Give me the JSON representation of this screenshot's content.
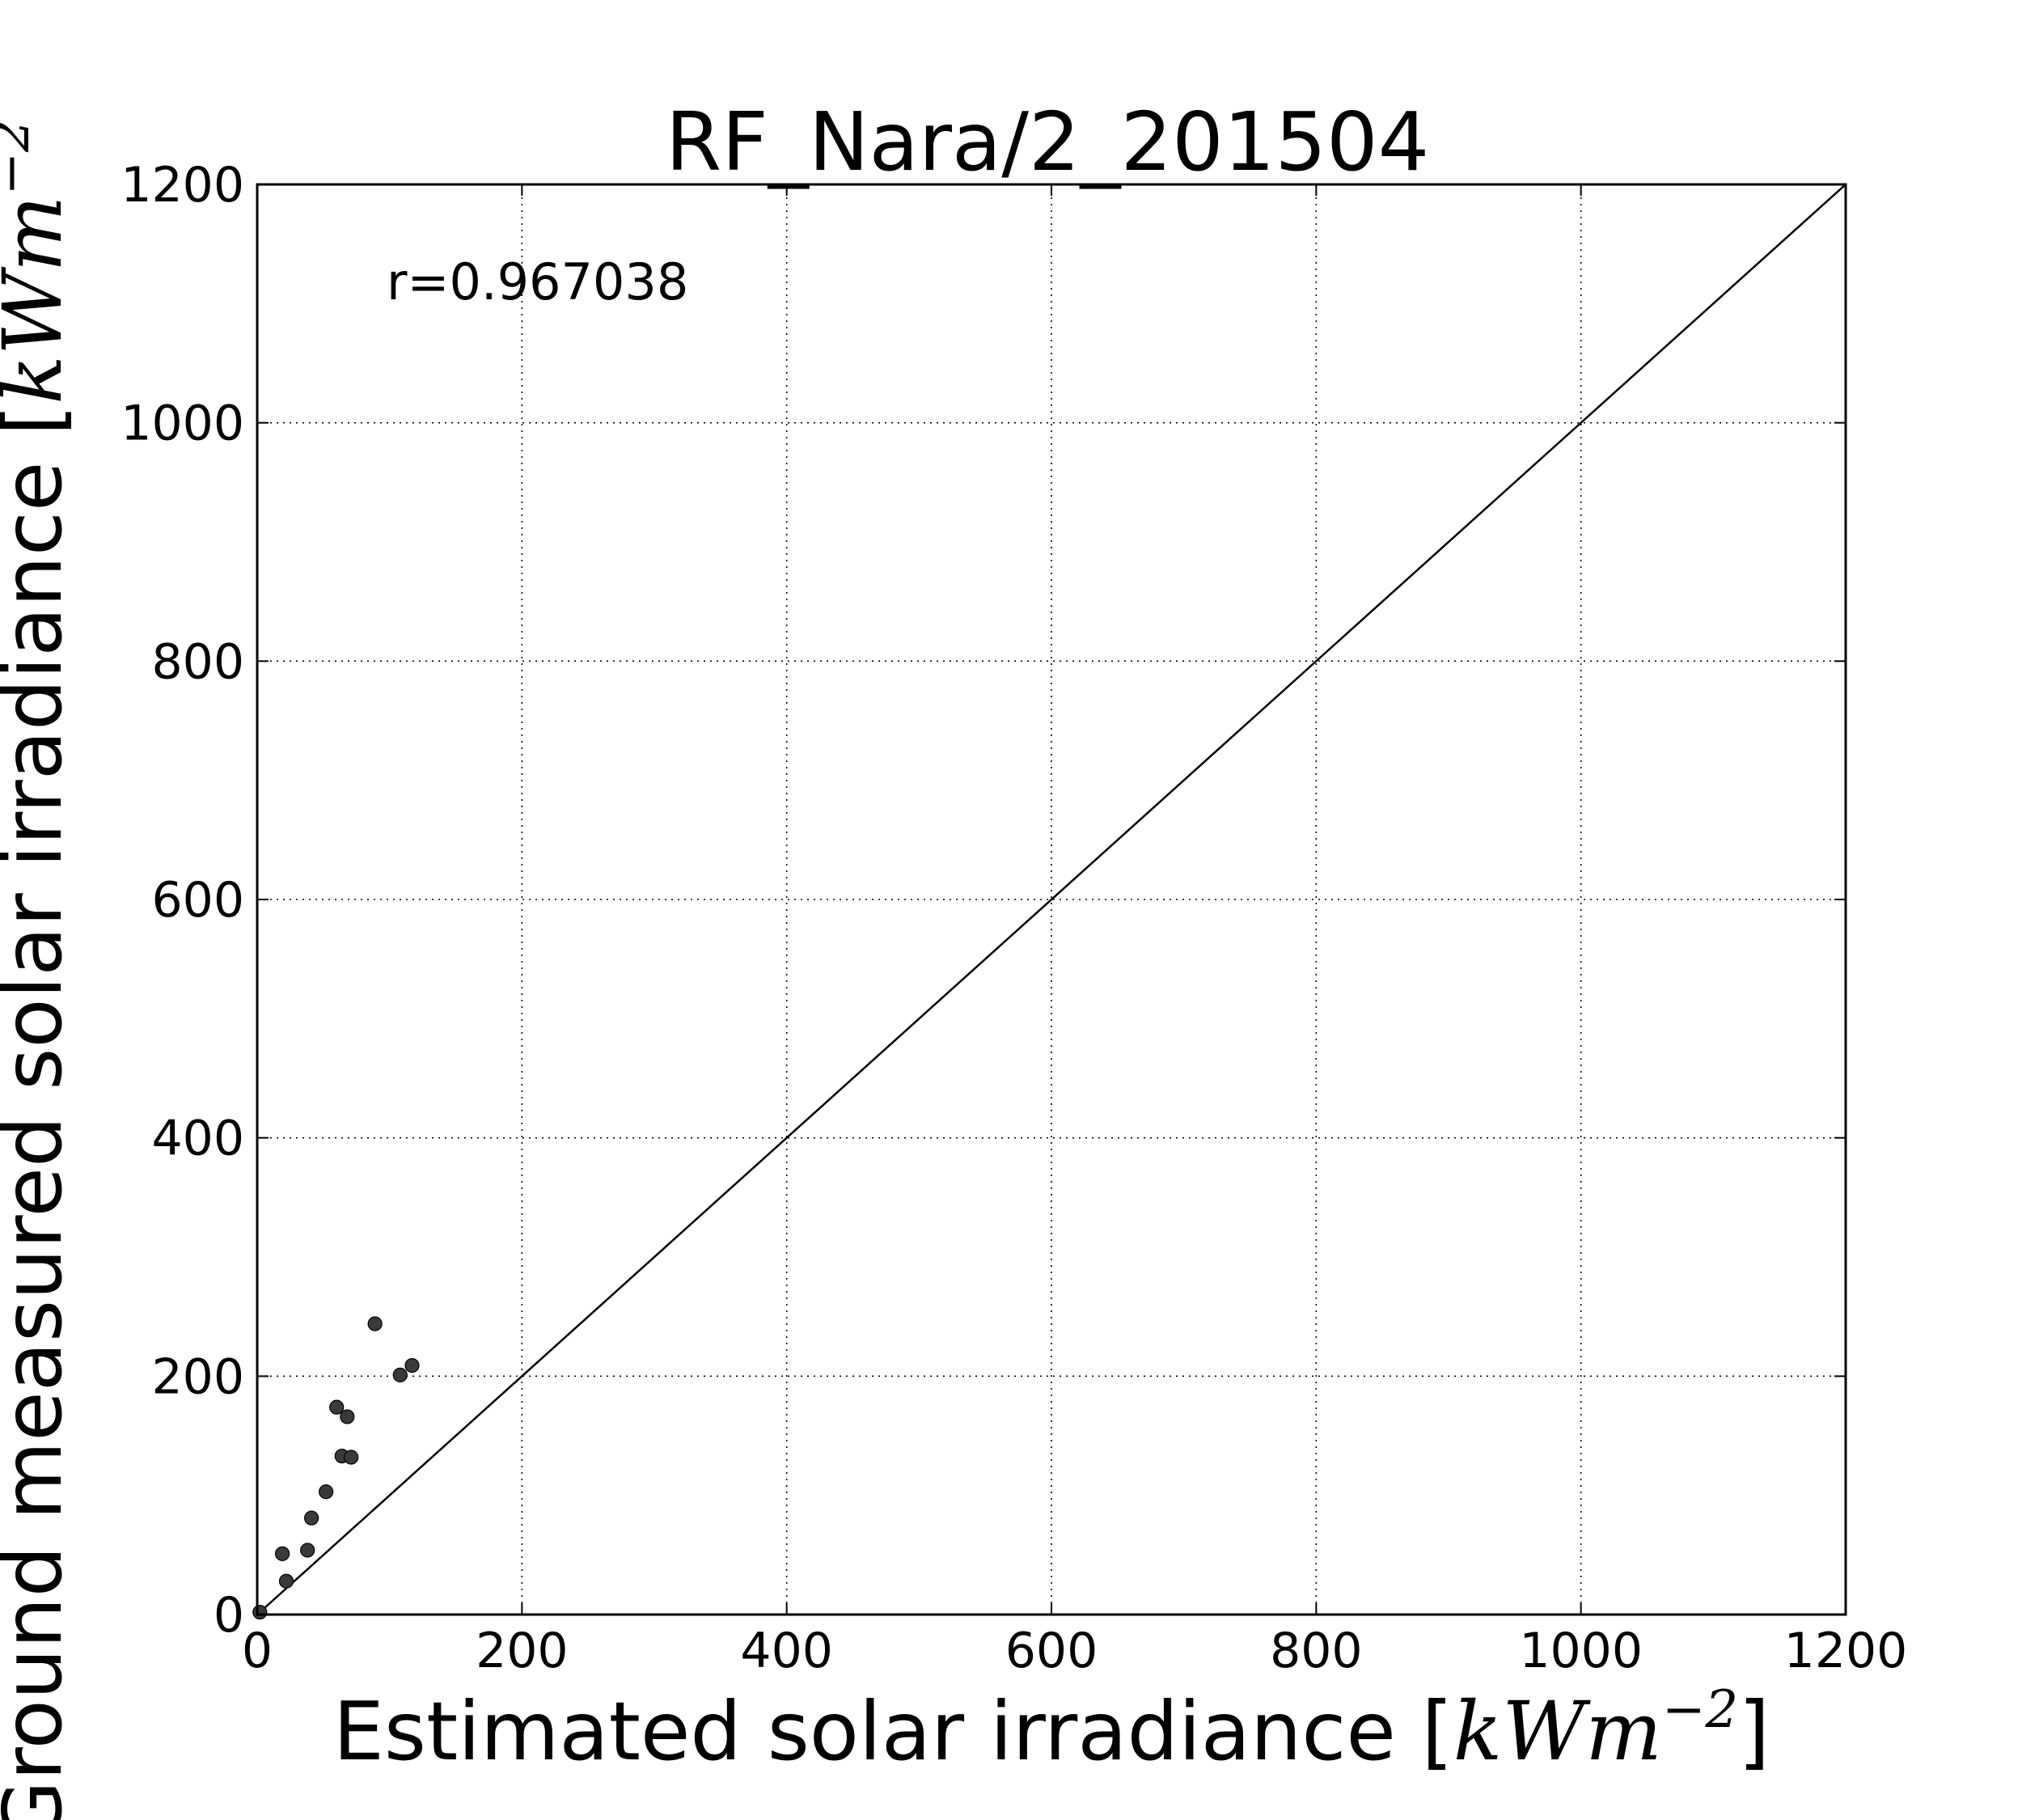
{
  "chart_data": {
    "type": "scatter",
    "title": "RF_Nara/2_201504",
    "xlabel": {
      "text": "Estimated solar irradiance [",
      "math": "kWm",
      "exp": "−2",
      "close": "]"
    },
    "ylabel": {
      "text": "Ground measured solar irradiance [",
      "math": "kWm",
      "exp": "−2"
    },
    "xlim": [
      0,
      1200
    ],
    "ylim": [
      0,
      1200
    ],
    "x_ticks": [
      0,
      200,
      400,
      600,
      800,
      1000,
      1200
    ],
    "y_ticks": [
      0,
      200,
      400,
      600,
      800,
      1000,
      1200
    ],
    "grid": true,
    "annotation": "r=0.967038",
    "reference_line": {
      "from": [
        0,
        0
      ],
      "to": [
        1200,
        1200
      ]
    },
    "series": [
      {
        "points": [
          [
            2,
            2
          ],
          [
            19,
            51
          ],
          [
            22,
            28
          ],
          [
            38,
            54
          ],
          [
            41,
            81
          ],
          [
            52,
            103
          ],
          [
            60,
            174
          ],
          [
            64,
            133
          ],
          [
            68,
            166
          ],
          [
            71,
            132
          ],
          [
            89,
            244
          ],
          [
            108,
            201
          ],
          [
            117,
            209
          ]
        ],
        "color": "#3a3a3a"
      }
    ]
  }
}
